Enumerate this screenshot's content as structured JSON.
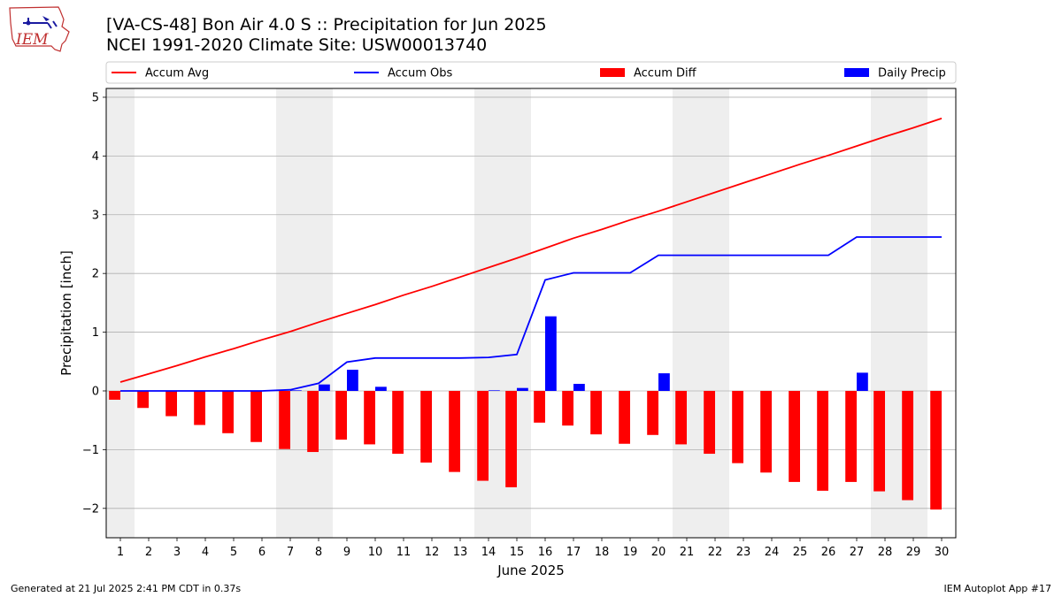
{
  "header": {
    "logo_text": "IEM",
    "title_line1": "[VA-CS-48] Bon Air 4.0 S :: Precipitation for Jun 2025",
    "title_line2": "NCEI 1991-2020 Climate Site: USW00013740"
  },
  "footer": {
    "generated": "Generated at 21 Jul 2025 2:41 PM CDT in 0.37s",
    "app": "IEM Autoplot App #17"
  },
  "chart_data": {
    "type": "bar",
    "xlabel": "June 2025",
    "ylabel": "Precipitation [inch]",
    "ylim": [
      -2.5,
      5.15
    ],
    "yticks": [
      -2,
      -1,
      0,
      1,
      2,
      3,
      4,
      5
    ],
    "ytick_labels": [
      "−2",
      "−1",
      "0",
      "1",
      "2",
      "3",
      "4",
      "5"
    ],
    "grid": true,
    "legend_position": "top (above plot)",
    "weekend_shading": [
      [
        1,
        1
      ],
      [
        7,
        8
      ],
      [
        14,
        15
      ],
      [
        21,
        22
      ],
      [
        28,
        29
      ]
    ],
    "days": [
      1,
      2,
      3,
      4,
      5,
      6,
      7,
      8,
      9,
      10,
      11,
      12,
      13,
      14,
      15,
      16,
      17,
      18,
      19,
      20,
      21,
      22,
      23,
      24,
      25,
      26,
      27,
      28,
      29,
      30
    ],
    "series": [
      {
        "name": "Accum Avg",
        "kind": "line",
        "color": "#ff0000",
        "values": [
          0.15,
          0.29,
          0.43,
          0.58,
          0.72,
          0.87,
          1.01,
          1.17,
          1.32,
          1.47,
          1.63,
          1.78,
          1.94,
          2.1,
          2.26,
          2.43,
          2.6,
          2.75,
          2.91,
          3.06,
          3.22,
          3.38,
          3.54,
          3.7,
          3.86,
          4.01,
          4.17,
          4.33,
          4.48,
          4.64
        ]
      },
      {
        "name": "Accum Obs",
        "kind": "line",
        "color": "#0000ff",
        "values": [
          0,
          0,
          0,
          0,
          0,
          0,
          0.02,
          0.13,
          0.49,
          0.56,
          0.56,
          0.56,
          0.56,
          0.57,
          0.62,
          1.89,
          2.01,
          2.01,
          2.01,
          2.31,
          2.31,
          2.31,
          2.31,
          2.31,
          2.31,
          2.31,
          2.62,
          2.62,
          2.62,
          2.62
        ]
      },
      {
        "name": "Accum Diff",
        "kind": "bar",
        "color": "#ff0000",
        "values": [
          -0.15,
          -0.29,
          -0.43,
          -0.58,
          -0.72,
          -0.87,
          -0.99,
          -1.04,
          -0.83,
          -0.91,
          -1.07,
          -1.22,
          -1.38,
          -1.53,
          -1.64,
          -0.54,
          -0.59,
          -0.74,
          -0.9,
          -0.75,
          -0.91,
          -1.07,
          -1.23,
          -1.39,
          -1.55,
          -1.7,
          -1.55,
          -1.71,
          -1.86,
          -2.02
        ]
      },
      {
        "name": "Daily Precip",
        "kind": "bar",
        "color": "#0000ff",
        "values": [
          0,
          0,
          0,
          0,
          0,
          0,
          0.01,
          0.11,
          0.36,
          0.07,
          0,
          0,
          0,
          0.01,
          0.05,
          1.27,
          0.12,
          0,
          0,
          0.3,
          0,
          0,
          0,
          0,
          0,
          0,
          0.31,
          0,
          0,
          0
        ]
      }
    ]
  }
}
